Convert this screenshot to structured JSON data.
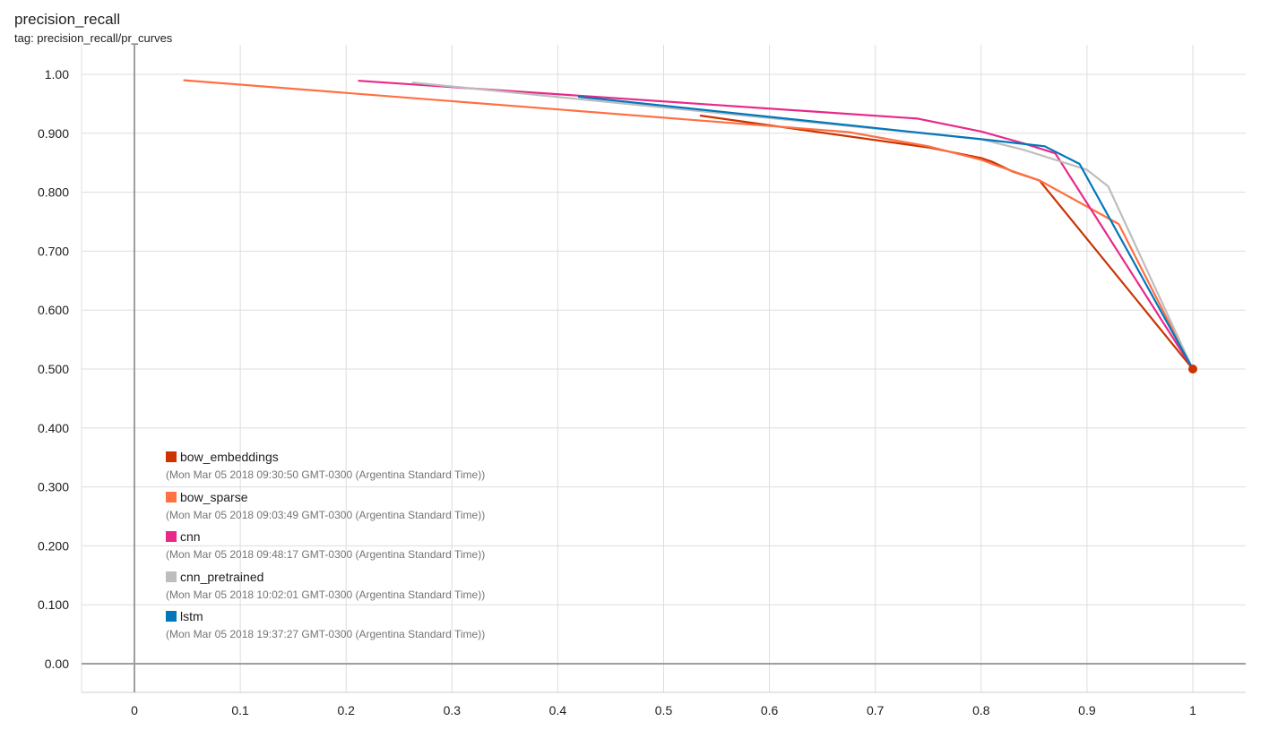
{
  "card": {
    "title": "precision_recall",
    "tag": "tag: precision_recall/pr_curves"
  },
  "chart_data": {
    "type": "line",
    "title": "precision_recall",
    "subtitle": "tag: precision_recall/pr_curves",
    "xlabel": "",
    "ylabel": "",
    "xlim": [
      -0.05,
      1.05
    ],
    "ylim": [
      -0.05,
      1.05
    ],
    "grid": true,
    "legend_position": "bottom-left",
    "x_ticks": [
      "0",
      "0.1",
      "0.2",
      "0.3",
      "0.4",
      "0.5",
      "0.6",
      "0.7",
      "0.8",
      "0.9",
      "1"
    ],
    "y_ticks": [
      "0.00",
      "0.100",
      "0.200",
      "0.300",
      "0.400",
      "0.500",
      "0.600",
      "0.700",
      "0.800",
      "0.900",
      "1.00"
    ],
    "series": [
      {
        "name": "bow_embeddings",
        "timestamp": "(Mon Mar 05 2018 09:30:50 GMT-0300 (Argentina Standard Time))",
        "color": "#cc3300",
        "points": [
          [
            0.535,
            0.93
          ],
          [
            0.75,
            0.876
          ],
          [
            0.8,
            0.858
          ],
          [
            0.81,
            0.852
          ],
          [
            0.83,
            0.835
          ],
          [
            0.855,
            0.82
          ],
          [
            1.0,
            0.5
          ]
        ]
      },
      {
        "name": "bow_sparse",
        "timestamp": "(Mon Mar 05 2018 09:03:49 GMT-0300 (Argentina Standard Time))",
        "color": "#ff7043",
        "points": [
          [
            0.047,
            0.99
          ],
          [
            0.675,
            0.902
          ],
          [
            0.75,
            0.878
          ],
          [
            0.8,
            0.855
          ],
          [
            0.815,
            0.845
          ],
          [
            0.855,
            0.82
          ],
          [
            0.93,
            0.746
          ],
          [
            1.0,
            0.5
          ]
        ]
      },
      {
        "name": "cnn",
        "timestamp": "(Mon Mar 05 2018 09:48:17 GMT-0300 (Argentina Standard Time))",
        "color": "#e7298a",
        "points": [
          [
            0.212,
            0.989
          ],
          [
            0.74,
            0.925
          ],
          [
            0.8,
            0.903
          ],
          [
            0.84,
            0.883
          ],
          [
            0.87,
            0.866
          ],
          [
            1.0,
            0.5
          ]
        ]
      },
      {
        "name": "cnn_pretrained",
        "timestamp": "(Mon Mar 05 2018 10:02:01 GMT-0300 (Argentina Standard Time))",
        "color": "#bdbdbd",
        "points": [
          [
            0.263,
            0.986
          ],
          [
            0.42,
            0.958
          ],
          [
            0.8,
            0.89
          ],
          [
            0.84,
            0.872
          ],
          [
            0.9,
            0.838
          ],
          [
            0.92,
            0.81
          ],
          [
            1.0,
            0.5
          ]
        ]
      },
      {
        "name": "lstm",
        "timestamp": "(Mon Mar 05 2018 19:37:27 GMT-0300 (Argentina Standard Time))",
        "color": "#0077bb",
        "points": [
          [
            0.42,
            0.962
          ],
          [
            0.8,
            0.89
          ],
          [
            0.86,
            0.878
          ],
          [
            0.893,
            0.848
          ],
          [
            1.0,
            0.5
          ]
        ]
      }
    ]
  }
}
